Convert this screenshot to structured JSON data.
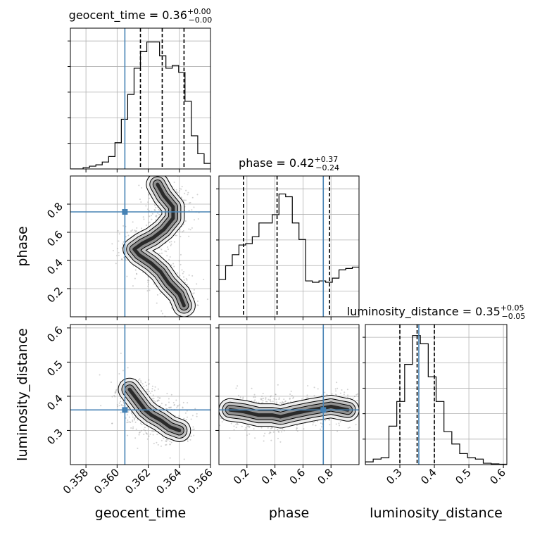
{
  "chart_data": {
    "type": "corner",
    "parameters": [
      {
        "name": "geocent_time",
        "axis_label": "geocent_time",
        "range": [
          0.357,
          0.366
        ],
        "ticks": [
          0.358,
          0.36,
          0.362,
          0.364,
          0.366
        ],
        "tick_labels": [
          "0.358",
          "0.360",
          "0.362",
          "0.364",
          "0.366"
        ],
        "title": {
          "main": "geocent_time = 0.36",
          "upper": "+0.00",
          "lower": "−0.00"
        },
        "truth": 0.3605,
        "quantiles": [
          0.3615,
          0.3629,
          0.3643
        ],
        "histogram": [
          0,
          0,
          0.01,
          0.02,
          0.03,
          0.05,
          0.09,
          0.19,
          0.36,
          0.54,
          0.73,
          0.85,
          0.92,
          0.92,
          0.82,
          0.73,
          0.75,
          0.7,
          0.49,
          0.24,
          0.11,
          0.04
        ]
      },
      {
        "name": "phase",
        "axis_label": "phase",
        "range": [
          0.0,
          1.0
        ],
        "ticks": [
          0.2,
          0.4,
          0.6,
          0.8
        ],
        "tick_labels": [
          "0.2",
          "0.4",
          "0.6",
          "0.8"
        ],
        "title": {
          "main": "phase = 0.42",
          "upper": "+0.37",
          "lower": "−0.24"
        },
        "truth": 0.745,
        "quantiles": [
          0.175,
          0.415,
          0.79
        ],
        "histogram": [
          0.27,
          0.37,
          0.45,
          0.52,
          0.53,
          0.58,
          0.68,
          0.68,
          0.74,
          0.89,
          0.87,
          0.68,
          0.56,
          0.26,
          0.25,
          0.26,
          0.25,
          0.28,
          0.34,
          0.35,
          0.36
        ]
      },
      {
        "name": "luminosity_distance",
        "axis_label": "luminosity_distance",
        "range": [
          0.2,
          0.61
        ],
        "ticks": [
          0.3,
          0.4,
          0.5,
          0.6
        ],
        "tick_labels": [
          "0.3",
          "0.4",
          "0.5",
          "0.6"
        ],
        "title": {
          "main": "luminosity_distance = 0.35",
          "upper": "+0.05",
          "lower": "−0.05"
        },
        "truth": 0.355,
        "quantiles": [
          0.3,
          0.35,
          0.4
        ],
        "histogram": [
          0.02,
          0.04,
          0.05,
          0.28,
          0.46,
          0.73,
          0.94,
          0.88,
          0.64,
          0.46,
          0.24,
          0.15,
          0.08,
          0.05,
          0.04,
          0.01,
          0.005,
          0.003
        ]
      }
    ],
    "pairs": [
      {
        "x": "geocent_time",
        "y": "phase",
        "truth": [
          0.3605,
          0.745
        ],
        "density_path": [
          [
            0.3643,
            0.08
          ],
          [
            0.364,
            0.16
          ],
          [
            0.3633,
            0.24
          ],
          [
            0.3628,
            0.32
          ],
          [
            0.3622,
            0.38
          ],
          [
            0.3614,
            0.44
          ],
          [
            0.3611,
            0.48
          ],
          [
            0.3616,
            0.52
          ],
          [
            0.3623,
            0.56
          ],
          [
            0.363,
            0.62
          ],
          [
            0.3636,
            0.7
          ],
          [
            0.3636,
            0.78
          ],
          [
            0.363,
            0.86
          ],
          [
            0.3626,
            0.94
          ]
        ]
      },
      {
        "x": "geocent_time",
        "y": "luminosity_distance",
        "truth": [
          0.3605,
          0.36
        ],
        "density_path": [
          [
            0.3608,
            0.42
          ],
          [
            0.3613,
            0.39
          ],
          [
            0.3618,
            0.36
          ],
          [
            0.3622,
            0.345
          ],
          [
            0.3628,
            0.33
          ],
          [
            0.3634,
            0.31
          ],
          [
            0.364,
            0.3
          ]
        ]
      },
      {
        "x": "phase",
        "y": "luminosity_distance",
        "truth": [
          0.745,
          0.36
        ],
        "density_path": [
          [
            0.08,
            0.36
          ],
          [
            0.18,
            0.355
          ],
          [
            0.28,
            0.345
          ],
          [
            0.38,
            0.345
          ],
          [
            0.44,
            0.34
          ],
          [
            0.54,
            0.35
          ],
          [
            0.66,
            0.36
          ],
          [
            0.8,
            0.37
          ],
          [
            0.92,
            0.36
          ]
        ]
      }
    ],
    "colors": {
      "truth": "#4682b4",
      "histogram": "#000000",
      "quantile": "#000000",
      "grid": "#b0b0b0",
      "scatter": "#9a9a9a"
    },
    "grid": true
  }
}
